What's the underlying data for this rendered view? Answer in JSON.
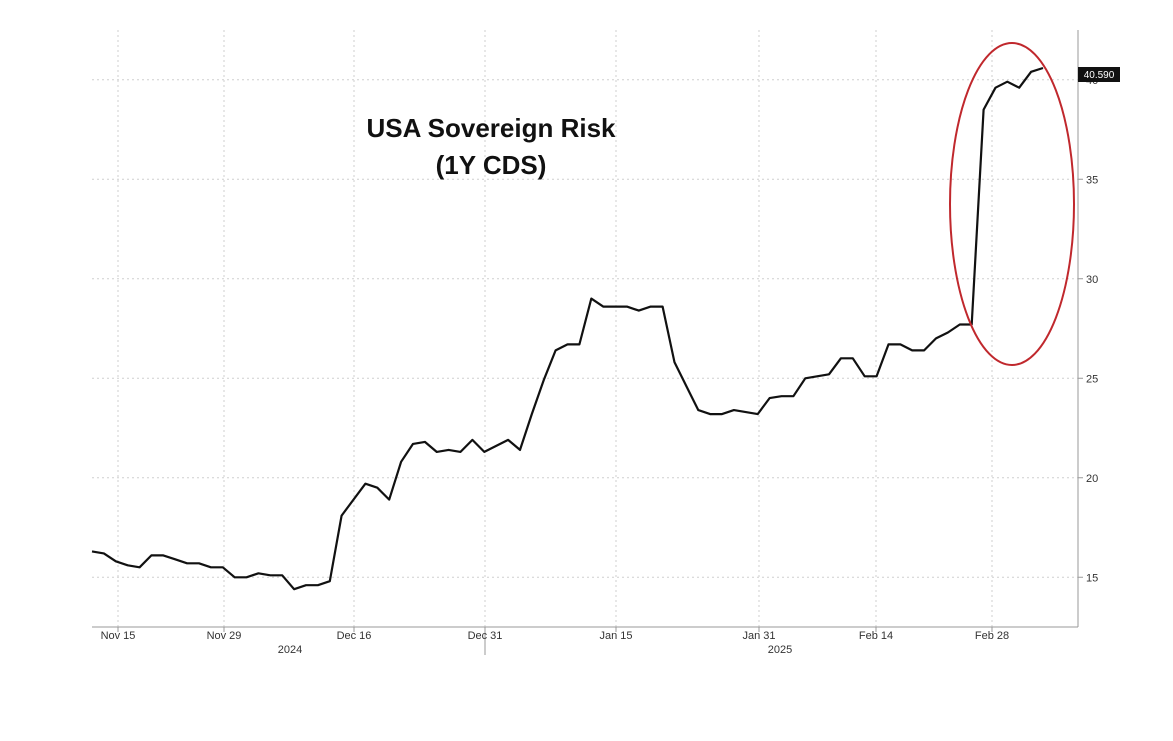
{
  "chart_data": {
    "type": "line",
    "title": "USA Sovereign Risk",
    "subtitle": "(1Y CDS)",
    "xlabel": "",
    "ylabel": "",
    "x_ticks": [
      "Nov 15",
      "Nov 29",
      "Dec 16",
      "Dec 31",
      "Jan 15",
      "Jan 31",
      "Feb 14",
      "Feb 28"
    ],
    "x_year_labels": [
      "2024",
      "2025"
    ],
    "y_ticks": [
      15,
      20,
      25,
      30,
      35,
      40
    ],
    "ylim": [
      12.5,
      42.5
    ],
    "grid": true,
    "last_value_label": "40.590",
    "annotation": "red ellipse highlighting the late-February spike",
    "series": [
      {
        "values": [
          16.3,
          16.2,
          15.8,
          15.6,
          15.5,
          16.1,
          16.1,
          15.9,
          15.7,
          15.7,
          15.5,
          15.5,
          15.0,
          15.0,
          15.2,
          15.1,
          15.1,
          14.4,
          14.6,
          14.6,
          14.8,
          18.1,
          18.9,
          19.7,
          19.5,
          18.9,
          20.8,
          21.7,
          21.8,
          21.3,
          21.4,
          21.3,
          21.9,
          21.3,
          21.6,
          21.9,
          21.4,
          23.2,
          24.9,
          26.4,
          26.7,
          26.7,
          29.0,
          28.6,
          28.6,
          28.6,
          28.4,
          28.6,
          28.6,
          25.8,
          24.6,
          23.4,
          23.2,
          23.2,
          23.4,
          23.3,
          23.2,
          24.0,
          24.1,
          24.1,
          25.0,
          25.1,
          25.2,
          26.0,
          26.0,
          25.1,
          25.1,
          26.7,
          26.7,
          26.4,
          26.4,
          27.0,
          27.3,
          27.7,
          27.7,
          38.5,
          39.6,
          39.9,
          39.6,
          40.4,
          40.59
        ]
      }
    ]
  }
}
